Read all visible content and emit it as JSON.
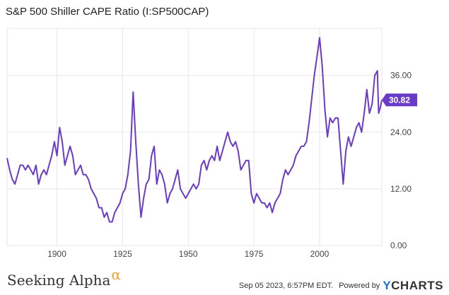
{
  "title": "S&P 500 Shiller CAPE Ratio (I:SP500CAP)",
  "footer": {
    "brand_left": "Seeking Alpha",
    "brand_left_symbol": "α",
    "timestamp": "Sep 05 2023, 6:57PM EDT.",
    "powered_by": "Powered by",
    "brand_right_mark": "Y",
    "brand_right": "CHARTS"
  },
  "colors": {
    "line": "#6a3bc9",
    "grid": "#e6e6e6",
    "badge": "#6a3bc9"
  },
  "chart_data": {
    "type": "line",
    "x_range": [
      1881,
      2023.7
    ],
    "y_range": [
      0,
      46
    ],
    "y_ticks": [
      0,
      12,
      24,
      36
    ],
    "y_tick_labels": [
      "0.00",
      "12.00",
      "24.00",
      "36.00"
    ],
    "x_ticks": [
      1900,
      1925,
      1950,
      1975,
      2000
    ],
    "x_tick_labels": [
      "1900",
      "1925",
      "1950",
      "1975",
      "2000"
    ],
    "last_value_label": "30.82",
    "grid": true,
    "series": [
      {
        "points": [
          [
            1881,
            18.5
          ],
          [
            1882,
            16
          ],
          [
            1883,
            14
          ],
          [
            1884,
            13
          ],
          [
            1885,
            15
          ],
          [
            1886,
            17
          ],
          [
            1887,
            17
          ],
          [
            1888,
            16
          ],
          [
            1889,
            17
          ],
          [
            1890,
            16
          ],
          [
            1891,
            15
          ],
          [
            1892,
            17
          ],
          [
            1893,
            13
          ],
          [
            1894,
            15
          ],
          [
            1895,
            16
          ],
          [
            1896,
            15
          ],
          [
            1897,
            17
          ],
          [
            1898,
            19
          ],
          [
            1899,
            22
          ],
          [
            1900,
            19
          ],
          [
            1901,
            25
          ],
          [
            1902,
            22
          ],
          [
            1903,
            17
          ],
          [
            1904,
            19
          ],
          [
            1905,
            21
          ],
          [
            1906,
            19
          ],
          [
            1907,
            15
          ],
          [
            1908,
            16
          ],
          [
            1909,
            17
          ],
          [
            1910,
            15
          ],
          [
            1911,
            15
          ],
          [
            1912,
            14
          ],
          [
            1913,
            12
          ],
          [
            1914,
            11
          ],
          [
            1915,
            10
          ],
          [
            1916,
            8
          ],
          [
            1917,
            8
          ],
          [
            1918,
            6
          ],
          [
            1919,
            7
          ],
          [
            1920,
            5
          ],
          [
            1921,
            5
          ],
          [
            1922,
            7
          ],
          [
            1923,
            8
          ],
          [
            1924,
            9
          ],
          [
            1925,
            11
          ],
          [
            1926,
            12
          ],
          [
            1927,
            15
          ],
          [
            1928,
            20
          ],
          [
            1929,
            32.5
          ],
          [
            1930,
            22
          ],
          [
            1931,
            13
          ],
          [
            1932,
            6
          ],
          [
            1933,
            10
          ],
          [
            1934,
            13
          ],
          [
            1935,
            14
          ],
          [
            1936,
            19
          ],
          [
            1937,
            21
          ],
          [
            1938,
            13
          ],
          [
            1939,
            16
          ],
          [
            1940,
            15
          ],
          [
            1941,
            13
          ],
          [
            1942,
            9
          ],
          [
            1943,
            11
          ],
          [
            1944,
            12
          ],
          [
            1945,
            14
          ],
          [
            1946,
            16
          ],
          [
            1947,
            12
          ],
          [
            1948,
            11
          ],
          [
            1949,
            10
          ],
          [
            1950,
            11
          ],
          [
            1951,
            12
          ],
          [
            1952,
            13
          ],
          [
            1953,
            12
          ],
          [
            1954,
            13
          ],
          [
            1955,
            17
          ],
          [
            1956,
            18
          ],
          [
            1957,
            16
          ],
          [
            1958,
            18
          ],
          [
            1959,
            19
          ],
          [
            1960,
            18
          ],
          [
            1961,
            21
          ],
          [
            1962,
            18
          ],
          [
            1963,
            20
          ],
          [
            1964,
            22
          ],
          [
            1965,
            24
          ],
          [
            1966,
            22
          ],
          [
            1967,
            21
          ],
          [
            1968,
            22
          ],
          [
            1969,
            20
          ],
          [
            1970,
            16
          ],
          [
            1971,
            17
          ],
          [
            1972,
            18
          ],
          [
            1973,
            18
          ],
          [
            1974,
            11
          ],
          [
            1975,
            9
          ],
          [
            1976,
            11
          ],
          [
            1977,
            10
          ],
          [
            1978,
            9
          ],
          [
            1979,
            9
          ],
          [
            1980,
            8
          ],
          [
            1981,
            9
          ],
          [
            1982,
            7
          ],
          [
            1983,
            9
          ],
          [
            1984,
            10
          ],
          [
            1985,
            11
          ],
          [
            1986,
            14
          ],
          [
            1987,
            16
          ],
          [
            1988,
            15
          ],
          [
            1989,
            16
          ],
          [
            1990,
            17
          ],
          [
            1991,
            19
          ],
          [
            1992,
            20
          ],
          [
            1993,
            21
          ],
          [
            1994,
            21
          ],
          [
            1995,
            22
          ],
          [
            1996,
            26
          ],
          [
            1997,
            31
          ],
          [
            1998,
            36
          ],
          [
            1999,
            40
          ],
          [
            2000,
            44
          ],
          [
            2001,
            38
          ],
          [
            2002,
            29
          ],
          [
            2003,
            23
          ],
          [
            2004,
            27
          ],
          [
            2005,
            26
          ],
          [
            2006,
            27
          ],
          [
            2007,
            27
          ],
          [
            2008,
            20
          ],
          [
            2009,
            13
          ],
          [
            2010,
            20
          ],
          [
            2011,
            23
          ],
          [
            2012,
            21
          ],
          [
            2013,
            23
          ],
          [
            2014,
            25
          ],
          [
            2015,
            26
          ],
          [
            2016,
            24
          ],
          [
            2017,
            28
          ],
          [
            2018,
            33
          ],
          [
            2019,
            28
          ],
          [
            2020,
            30
          ],
          [
            2021,
            36
          ],
          [
            2022,
            37
          ],
          [
            2022.5,
            28
          ],
          [
            2023,
            29
          ],
          [
            2023.7,
            30.82
          ]
        ]
      }
    ]
  }
}
